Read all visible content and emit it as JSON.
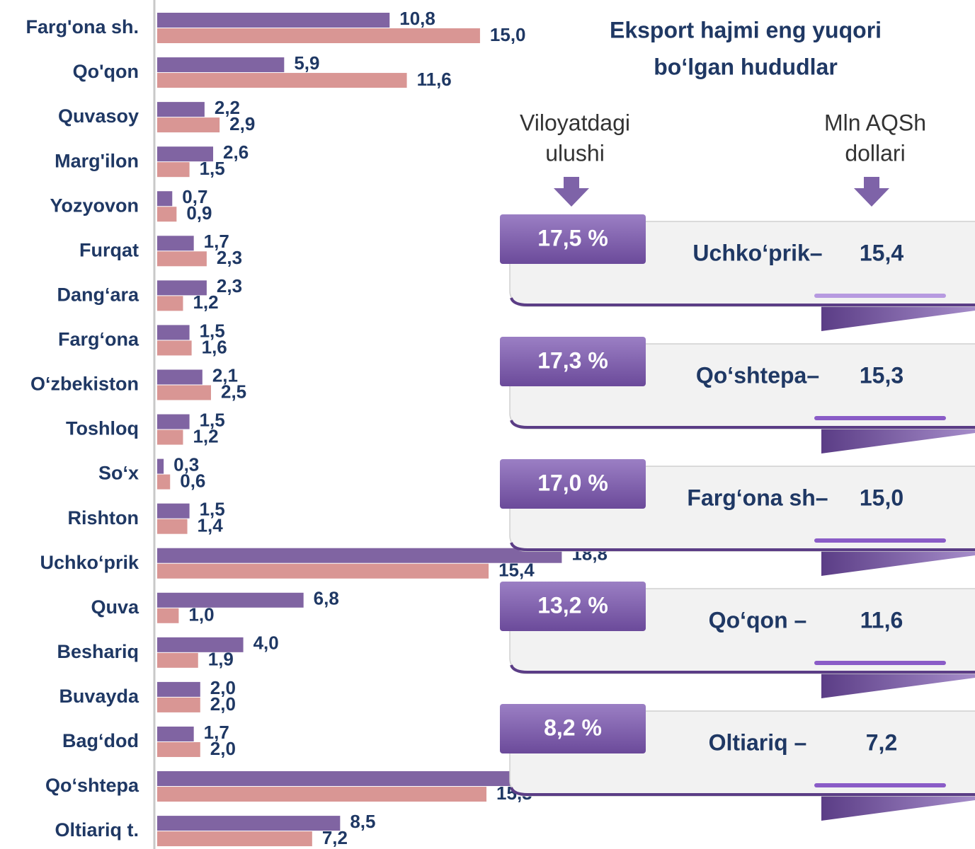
{
  "chart_data": {
    "type": "bar",
    "orientation": "horizontal",
    "categories": [
      "Farg'ona sh.",
      "Qo'qon",
      "Quvasoy",
      "Marg'ilon",
      "Yozyovon",
      "Furqat",
      "Dang‘ara",
      "Farg‘ona",
      "O‘zbekiston",
      "Toshloq",
      "So‘x",
      "Rishton",
      "Uchko‘prik",
      "Quva",
      "Beshariq",
      "Buvayda",
      "Bag‘dod",
      "Qo‘shtepa",
      "Oltiariq t."
    ],
    "series": [
      {
        "color": "#8064a2",
        "values": [
          10.8,
          5.9,
          2.2,
          2.6,
          0.7,
          1.7,
          2.3,
          1.5,
          2.1,
          1.5,
          0.3,
          1.5,
          18.8,
          6.8,
          4.0,
          2.0,
          1.7,
          16.7,
          8.5
        ],
        "value_labels": [
          "10,8",
          "5,9",
          "2,2",
          "2,6",
          "0,7",
          "1,7",
          "2,3",
          "1,5",
          "2,1",
          "1,5",
          "0,3",
          "1,5",
          "18,8",
          "6,8",
          "4,0",
          "2,0",
          "1,7",
          "16,7",
          "8,5"
        ]
      },
      {
        "color": "#d99694",
        "values": [
          15.0,
          11.6,
          2.9,
          1.5,
          0.9,
          2.3,
          1.2,
          1.6,
          2.5,
          1.2,
          0.6,
          1.4,
          15.4,
          1.0,
          1.9,
          2.0,
          2.0,
          15.3,
          7.2
        ],
        "value_labels": [
          "15,0",
          "11,6",
          "2,9",
          "1,5",
          "0,9",
          "2,3",
          "1,2",
          "1,6",
          "2,5",
          "1,2",
          "0,6",
          "1,4",
          "15,4",
          "1,0",
          "1,9",
          "2,0",
          "2,0",
          "15,3",
          "7,2"
        ]
      }
    ],
    "xlim": [
      0,
      38
    ]
  },
  "panel": {
    "title": [
      "Eksport hajmi eng yuqori",
      "bo‘lgan hududlar"
    ],
    "headers": [
      [
        "Viloyatdagi",
        "ulushi"
      ],
      [
        "Mln AQSh",
        "dollari"
      ]
    ],
    "cards": [
      {
        "share": "17,5 %",
        "name": "Uchko‘prik–",
        "value": "15,4"
      },
      {
        "share": "17,3 %",
        "name": "Qo‘shtepa–",
        "value": "15,3"
      },
      {
        "share": "17,0 %",
        "name": "Farg‘ona sh–",
        "value": "15,0"
      },
      {
        "share": "13,2 %",
        "name": "Qo‘qon –",
        "value": "11,6"
      },
      {
        "share": "8,2 %",
        "name": "Oltiariq  –",
        "value": "7,2"
      }
    ]
  }
}
